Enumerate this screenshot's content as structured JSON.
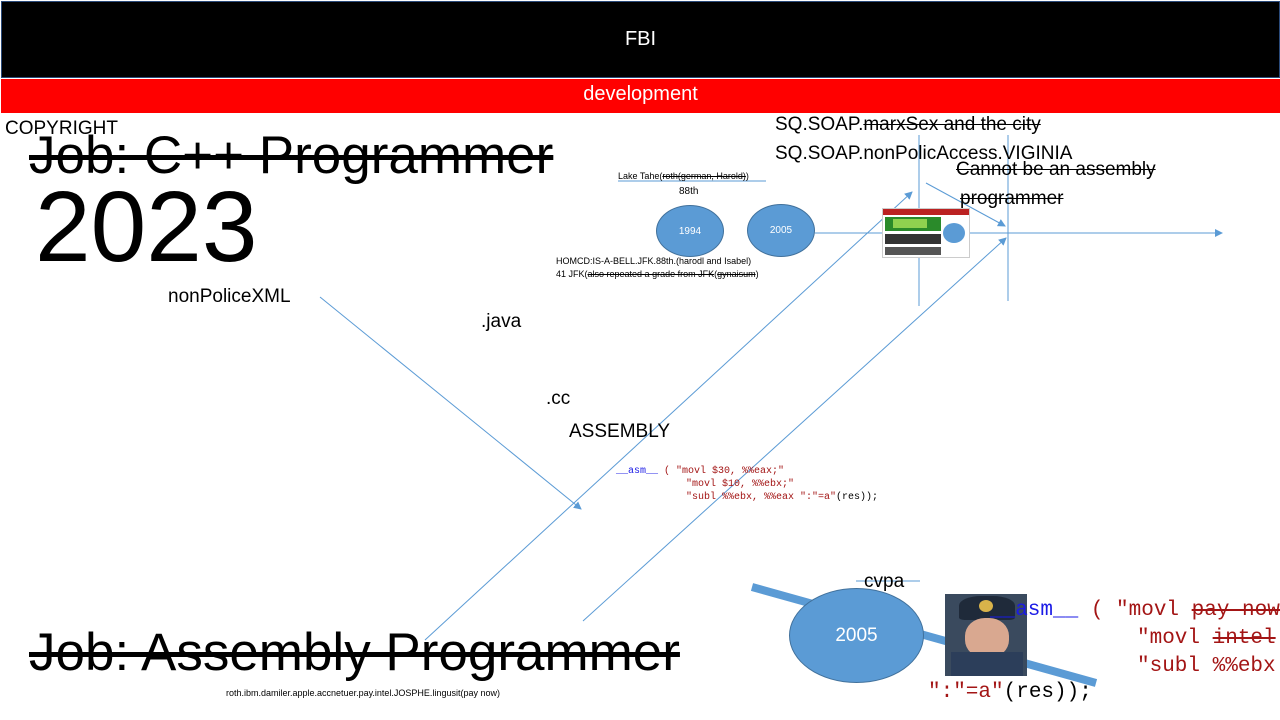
{
  "header": {
    "title": "FBI",
    "subtitle": "development"
  },
  "copyright": "COPYRIGHT",
  "job_cpp": "Job: C++ Programmer",
  "year": "2023",
  "job_asm": "Job: Assembly Programmer",
  "labels": {
    "non_police_xml": "nonPoliceXML",
    "java": ".java",
    "cc": ".cc",
    "assembly": "ASSEMBLY",
    "cvpa": "cvpa",
    "footer_note": "roth.ibm.damiler.apple.accnetuer.pay.intel.JOSPHE.lingusit(pay now)"
  },
  "soap": {
    "line1_prefix": "SQ.SOAP.",
    "line1_struck": "marxSex and the city",
    "line2": "SQ.SOAP.nonPolicAccess.VIGINIA"
  },
  "cannot": {
    "line1": "Cannot be an assembly",
    "line2": "programmer"
  },
  "timeline": {
    "lake_prefix": "Lake Tahe(",
    "lake_struck": "roth(german, Harold)",
    "ordinal": "88th",
    "circle1": "1994",
    "circle2": "2005",
    "homcd": "HOMCD:IS-A-BELL.JFK.88th.(harodl and Isabel)",
    "jfk_prefix": "41 JFK(",
    "jfk_struck1": "also repeated a grade from JFK",
    "jfk_mid": "(",
    "jfk_struck2": "gynaisum",
    "jfk_suffix": ")"
  },
  "code_small": {
    "kw": "__asm__",
    "l1": " ( \"movl $30, %%eax;\"",
    "l2": "\"movl $10, %%ebx;\"",
    "l3a": "\"subl %%ebx, %%eax \":\"=a\"",
    "l3b": "(res));"
  },
  "code_big": {
    "kw": "__asm__",
    "l1a": " ( \"movl ",
    "l1s": "pay now,",
    "l2a": "\"movl ",
    "l2s": "intel",
    "l3": "\"subl %%ebx",
    "l4a": "\":\"=a\"",
    "l4b": "(res));"
  },
  "big_circle": "2005",
  "colors": {
    "accent": "#5b9bd5",
    "red_bar": "#ff0000",
    "line": "#5b9bd5"
  }
}
